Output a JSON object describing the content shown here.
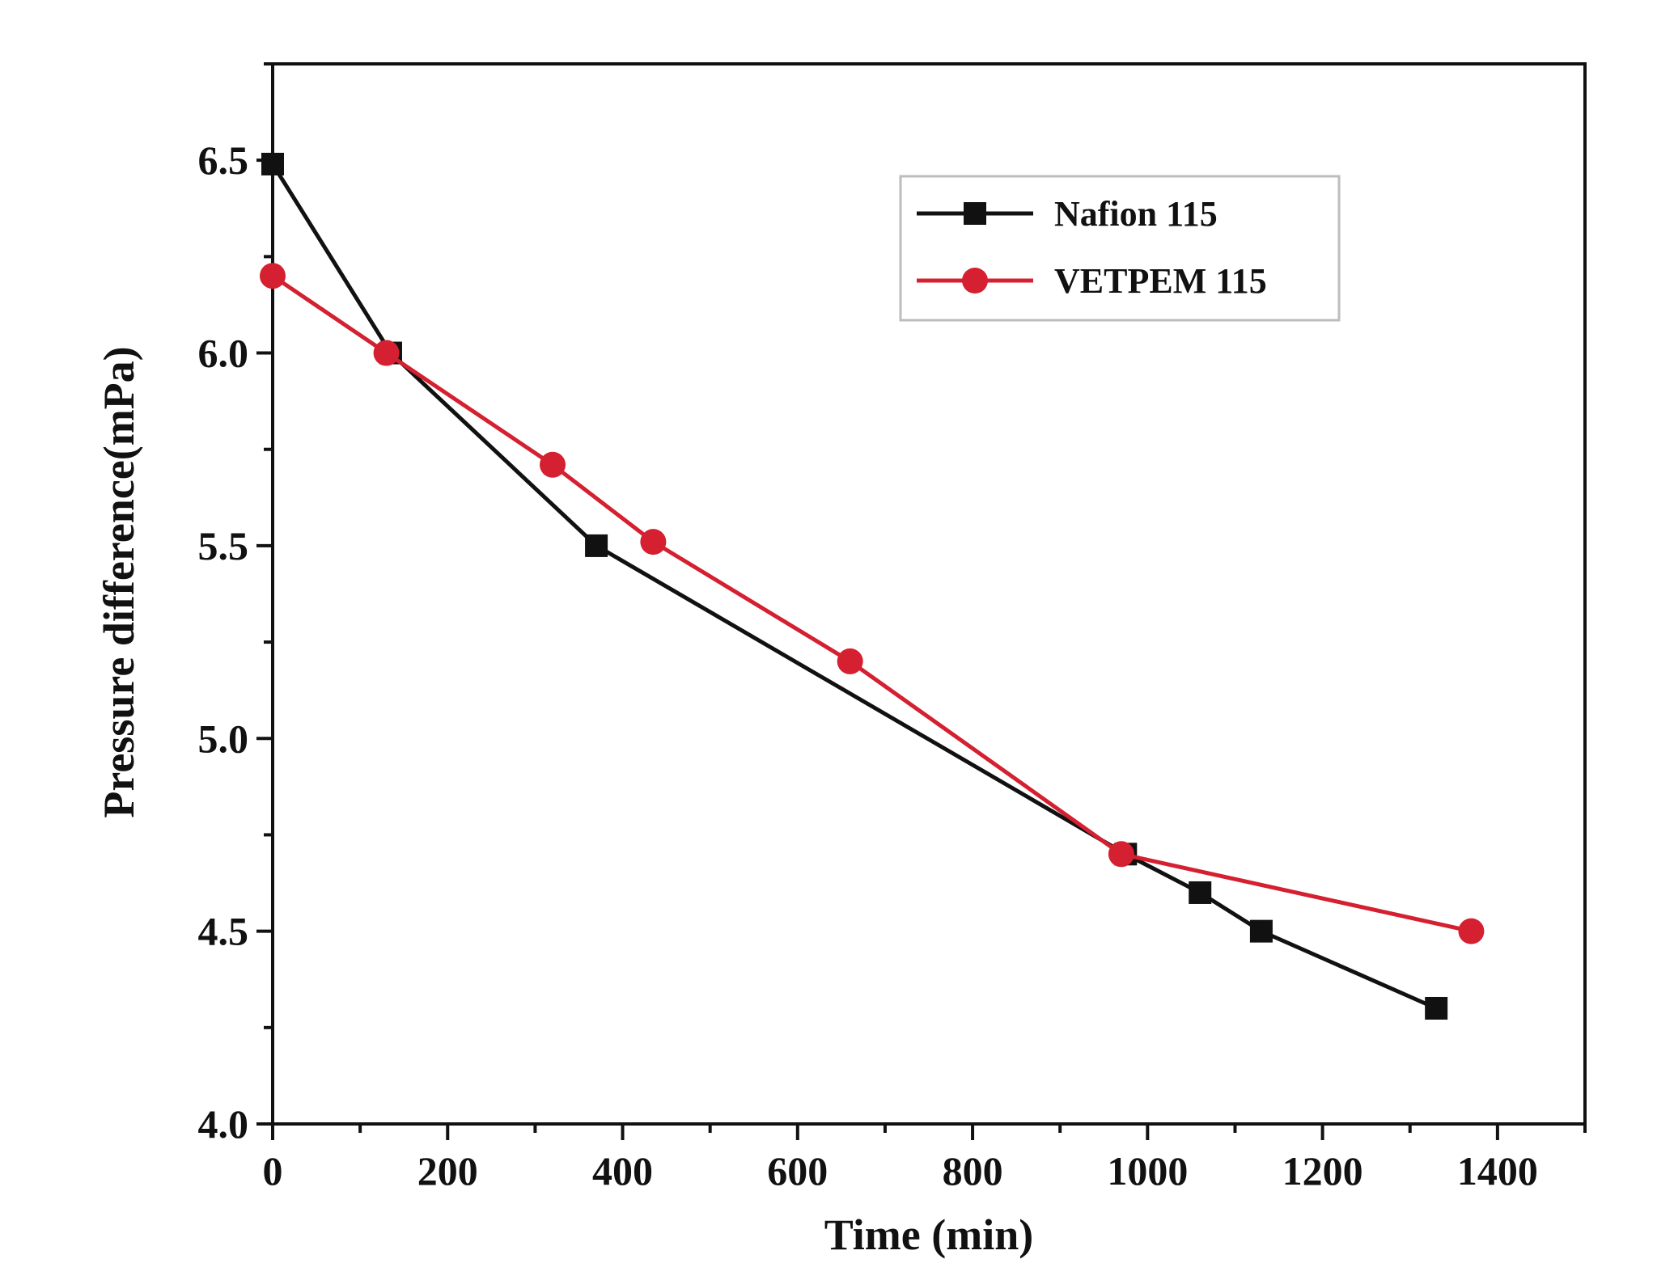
{
  "chart_data": {
    "type": "line",
    "xlabel": "Time (min)",
    "ylabel": "Pressure difference(mPa)",
    "xlim": [
      0,
      1500
    ],
    "ylim": [
      4.0,
      6.75
    ],
    "x_ticks": [
      0,
      200,
      400,
      600,
      800,
      1000,
      1200,
      1400
    ],
    "x_tick_labels": [
      "0",
      "200",
      "400",
      "600",
      "800",
      "1000",
      "1200",
      "1400"
    ],
    "y_ticks": [
      4.0,
      4.5,
      5.0,
      5.5,
      6.0,
      6.5
    ],
    "y_tick_labels": [
      "4.0",
      "4.5",
      "5.0",
      "5.5",
      "6.0",
      "6.5"
    ],
    "grid": false,
    "legend_position": "top-right",
    "series": [
      {
        "name": "Nafion 115",
        "color": "#111111",
        "marker": "square",
        "x": [
          0,
          135,
          370,
          975,
          1060,
          1130,
          1330
        ],
        "y": [
          6.49,
          6.0,
          5.5,
          4.7,
          4.6,
          4.5,
          4.3
        ]
      },
      {
        "name": "VETPEM 115",
        "color": "#d42030",
        "marker": "circle",
        "x": [
          0,
          130,
          320,
          435,
          660,
          970,
          1370
        ],
        "y": [
          6.2,
          6.0,
          5.71,
          5.51,
          5.2,
          4.7,
          4.5
        ]
      }
    ]
  }
}
